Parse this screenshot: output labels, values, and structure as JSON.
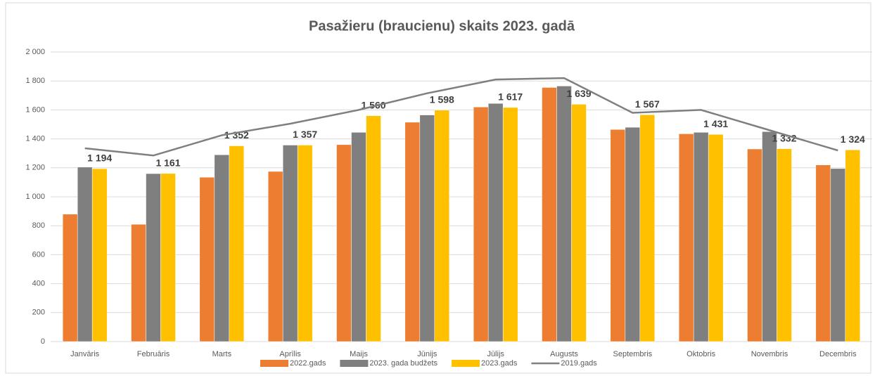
{
  "chart_data": {
    "type": "bar",
    "title": "Pasažieru (braucienu) skaits 2023. gadā",
    "categories": [
      "Janvāris",
      "Februāris",
      "Marts",
      "Aprīlis",
      "Maijs",
      "Jūnijs",
      "Jūlijs",
      "Augusts",
      "Septembris",
      "Oktobris",
      "Novembris",
      "Decembris"
    ],
    "series": [
      {
        "name": "2022.gads",
        "color": "#ed7d31",
        "values": [
          880,
          810,
          1135,
          1175,
          1360,
          1515,
          1620,
          1755,
          1465,
          1435,
          1330,
          1220
        ]
      },
      {
        "name": "2023. gada budžets",
        "color": "#7f7f7f",
        "values": [
          1205,
          1160,
          1290,
          1357,
          1445,
          1565,
          1645,
          1765,
          1480,
          1445,
          1450,
          1195
        ]
      },
      {
        "name": "2023.gads",
        "color": "#ffc000",
        "values": [
          1194,
          1161,
          1352,
          1357,
          1560,
          1598,
          1617,
          1639,
          1567,
          1431,
          1332,
          1324
        ],
        "value_labels": [
          "1 194",
          "1 161",
          "1 352",
          "1 357",
          "1 560",
          "1 598",
          "1 617",
          "1 639",
          "1 567",
          "1 431",
          "1 332",
          "1 324"
        ]
      },
      {
        "name": "2019.gads",
        "type": "line",
        "color": "#7f7f7f",
        "values": [
          1335,
          1285,
          1425,
          1505,
          1600,
          1715,
          1810,
          1820,
          1580,
          1600,
          1460,
          1320
        ]
      }
    ],
    "ylim": [
      0,
      2000
    ],
    "yticks": [
      0,
      200,
      400,
      600,
      800,
      {
        "value": 1000,
        "label": "1 000"
      },
      {
        "value": 1200,
        "label": "1 200"
      },
      {
        "value": 1400,
        "label": "1 400"
      },
      {
        "value": 1600,
        "label": "1 600"
      },
      {
        "value": 1800,
        "label": "1 800"
      },
      {
        "value": 2000,
        "label": "2 000"
      }
    ],
    "grid": true,
    "legend": "bottom"
  }
}
